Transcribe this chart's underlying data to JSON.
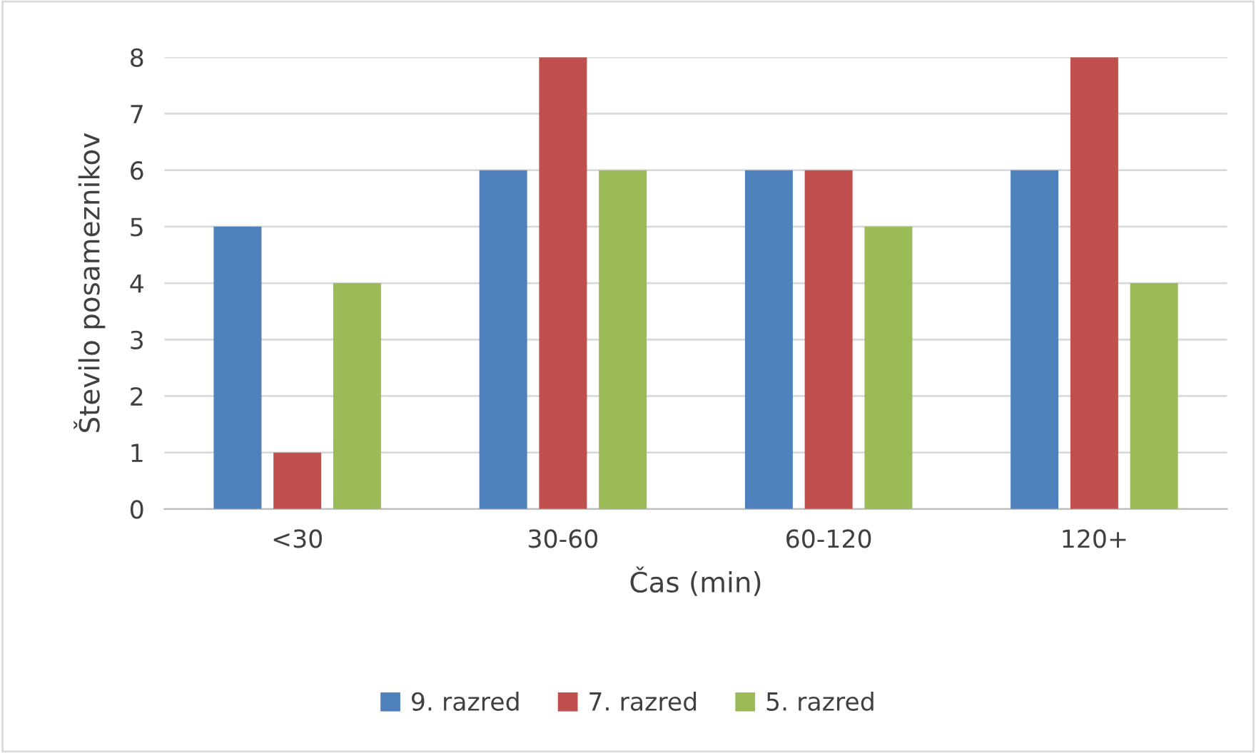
{
  "chart_data": {
    "type": "bar",
    "xlabel": "Čas (min)",
    "ylabel": "Število posameznikov",
    "categories": [
      "<30",
      "30-60",
      "60-120",
      "120+"
    ],
    "series": [
      {
        "name": "9. razred",
        "color": "#4f81bd",
        "values": [
          5,
          6,
          6,
          6
        ]
      },
      {
        "name": "7. razred",
        "color": "#c0504d",
        "values": [
          1,
          8,
          6,
          8
        ]
      },
      {
        "name": "5. razred",
        "color": "#9bbb59",
        "values": [
          4,
          6,
          5,
          4
        ]
      }
    ],
    "ylim": [
      0,
      8
    ],
    "yticks": [
      0,
      1,
      2,
      3,
      4,
      5,
      6,
      7,
      8
    ],
    "grid": "y",
    "legend": "bottom"
  }
}
